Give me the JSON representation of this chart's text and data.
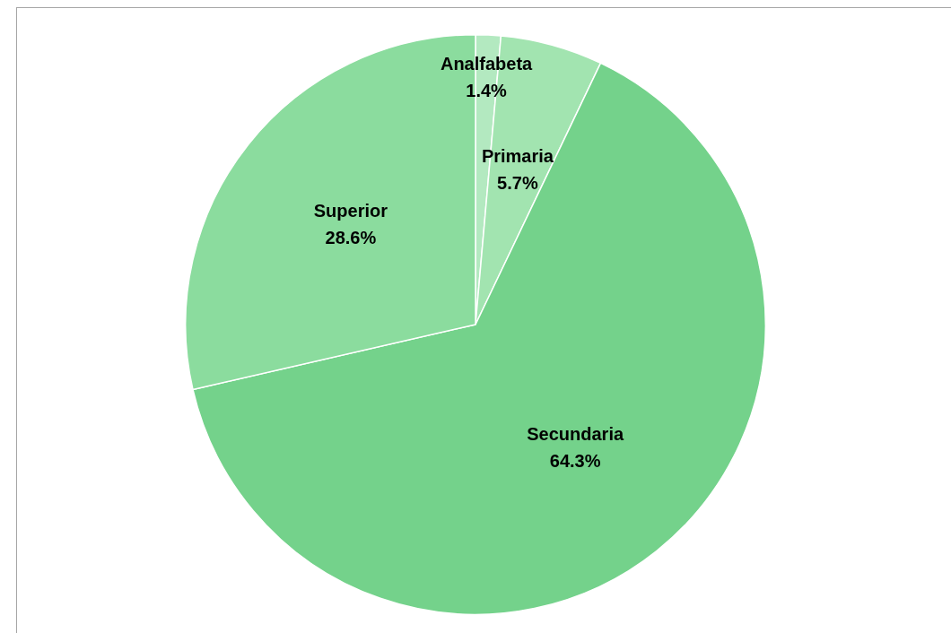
{
  "chart_data": {
    "type": "pie",
    "categories": [
      "Analfabeta",
      "Primaria",
      "Secundaria",
      "Superior"
    ],
    "values": [
      1.4,
      5.7,
      64.3,
      28.6
    ],
    "value_labels": [
      "1.4%",
      "5.7%",
      "64.3%",
      "28.6%"
    ],
    "colors": [
      "#b3e9c0",
      "#a2e4b0",
      "#74d28b",
      "#8bdc9e"
    ],
    "legend": false
  }
}
